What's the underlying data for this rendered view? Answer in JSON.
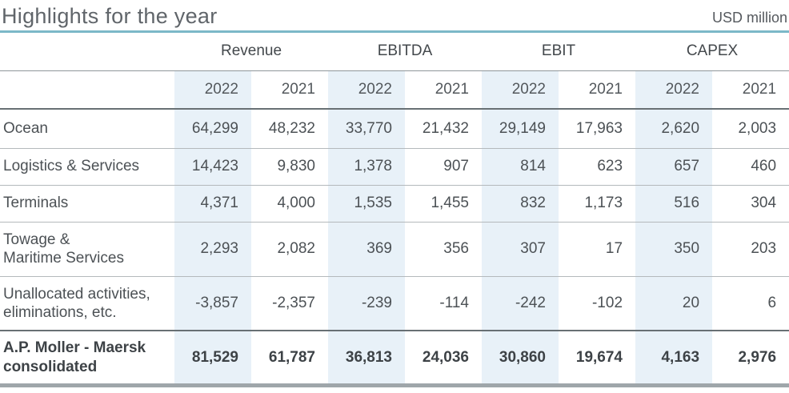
{
  "header": {
    "title": "Highlights for the year",
    "unit": "USD million"
  },
  "colors": {
    "accent_teal_rule": "#7cb8c8",
    "highlight_column_bg": "#e8f1f8",
    "bottom_bar": "#9fa6aa"
  },
  "table": {
    "groups": [
      "Revenue",
      "EBITDA",
      "EBIT",
      "CAPEX"
    ],
    "years": [
      "2022",
      "2021",
      "2022",
      "2021",
      "2022",
      "2021",
      "2022",
      "2021"
    ],
    "rows": [
      {
        "label": "Ocean",
        "values": [
          "64,299",
          "48,232",
          "33,770",
          "21,432",
          "29,149",
          "17,963",
          "2,620",
          "2,003"
        ]
      },
      {
        "label": "Logistics & Services",
        "values": [
          "14,423",
          "9,830",
          "1,378",
          "907",
          "814",
          "623",
          "657",
          "460"
        ]
      },
      {
        "label": "Terminals",
        "values": [
          "4,371",
          "4,000",
          "1,535",
          "1,455",
          "832",
          "1,173",
          "516",
          "304"
        ]
      },
      {
        "label": "Towage &\nMaritime Services",
        "values": [
          "2,293",
          "2,082",
          "369",
          "356",
          "307",
          "17",
          "350",
          "203"
        ]
      },
      {
        "label": "Unallocated activities,\neliminations, etc.",
        "values": [
          "-3,857",
          "-2,357",
          "-239",
          "-114",
          "-242",
          "-102",
          "20",
          "6"
        ]
      },
      {
        "label": "A.P. Moller - Maersk\nconsolidated",
        "values": [
          "81,529",
          "61,787",
          "36,813",
          "24,036",
          "30,860",
          "19,674",
          "4,163",
          "2,976"
        ]
      }
    ]
  }
}
